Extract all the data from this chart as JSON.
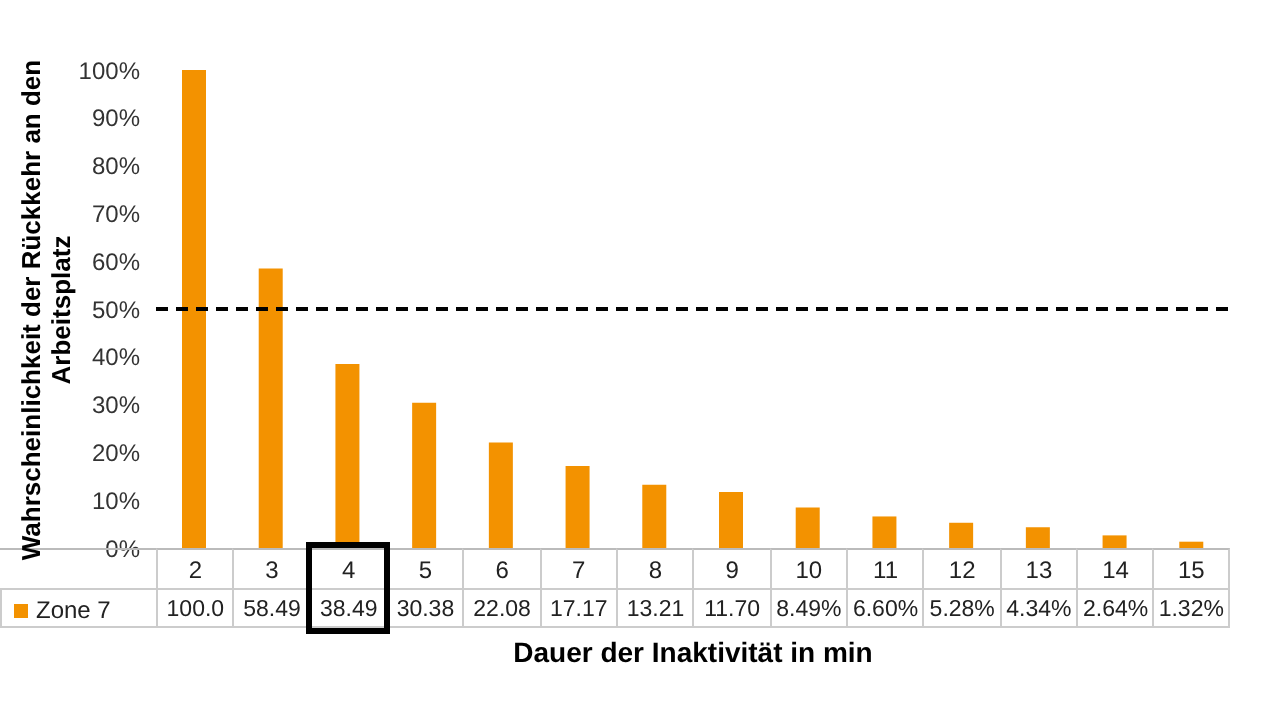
{
  "chart_data": {
    "type": "bar",
    "xlabel": "Dauer der Inaktivität in min",
    "ylabel": "Wahrscheinlichkeit der Rückkehr an den Arbeitsplatz",
    "categories": [
      "2",
      "3",
      "4",
      "5",
      "6",
      "7",
      "8",
      "9",
      "10",
      "11",
      "12",
      "13",
      "14",
      "15"
    ],
    "series": [
      {
        "name": "Zone 7",
        "color": "#f39200",
        "values": [
          100.0,
          58.49,
          38.49,
          30.38,
          22.08,
          17.17,
          13.21,
          11.7,
          8.49,
          6.6,
          5.28,
          4.34,
          2.64,
          1.32
        ],
        "value_labels": [
          "100.0",
          "58.49",
          "38.49",
          "30.38",
          "22.08",
          "17.17",
          "13.21",
          "11.70",
          "8.49%",
          "6.60%",
          "5.28%",
          "4.34%",
          "2.64%",
          "1.32%"
        ]
      }
    ],
    "ylim": [
      0,
      100
    ],
    "yticks": [
      {
        "value": 0,
        "label": "0%"
      },
      {
        "value": 10,
        "label": "10%"
      },
      {
        "value": 20,
        "label": "20%"
      },
      {
        "value": 30,
        "label": "30%"
      },
      {
        "value": 40,
        "label": "40%"
      },
      {
        "value": 50,
        "label": "50%"
      },
      {
        "value": 60,
        "label": "60%"
      },
      {
        "value": 70,
        "label": "70%"
      },
      {
        "value": 80,
        "label": "80%"
      },
      {
        "value": 90,
        "label": "90%"
      },
      {
        "value": 100,
        "label": "100%"
      }
    ],
    "ref_lines": [
      {
        "axis": "y",
        "value": 50,
        "color": "#000000",
        "line_style": "dashed"
      }
    ],
    "grid": false,
    "legend": "bottom left"
  }
}
